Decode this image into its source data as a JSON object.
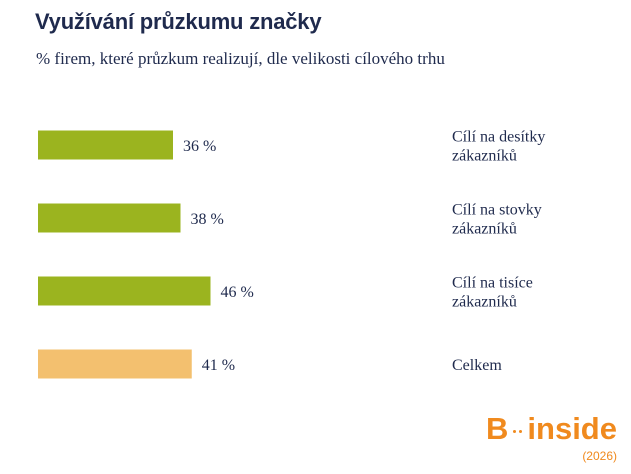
{
  "title": "Využívání průzkumu značky",
  "subtitle": "% firem, které průzkum realizují, dle velikosti cílového trhu",
  "colors": {
    "accent": "#9bb41f",
    "total": "#f3c06f",
    "text": "#1f2a4d",
    "brand": "#f08a1e"
  },
  "chart_data": {
    "type": "bar",
    "orientation": "horizontal",
    "title": "Využívání průzkumu značky",
    "subtitle": "% firem, které průzkum realizují, dle velikosti cílového trhu",
    "unit": "%",
    "xlim": [
      0,
      100
    ],
    "grid": false,
    "categories": [
      [
        "Cílí na desítky",
        "zákazníků"
      ],
      [
        "Cílí na stovky",
        "zákazníků"
      ],
      [
        "Cílí na tisíce",
        "zákazníků"
      ],
      [
        "Celkem"
      ]
    ],
    "values": [
      36,
      38,
      46,
      41
    ],
    "value_labels": [
      "36 %",
      "38 %",
      "46 %",
      "41 %"
    ],
    "bar_colors": [
      "#9bb41f",
      "#9bb41f",
      "#9bb41f",
      "#f3c06f"
    ]
  },
  "logo": {
    "text_b": "B",
    "text_inside": "inside",
    "year": "(2026)",
    "icon": "b-inside-logo-icon"
  }
}
